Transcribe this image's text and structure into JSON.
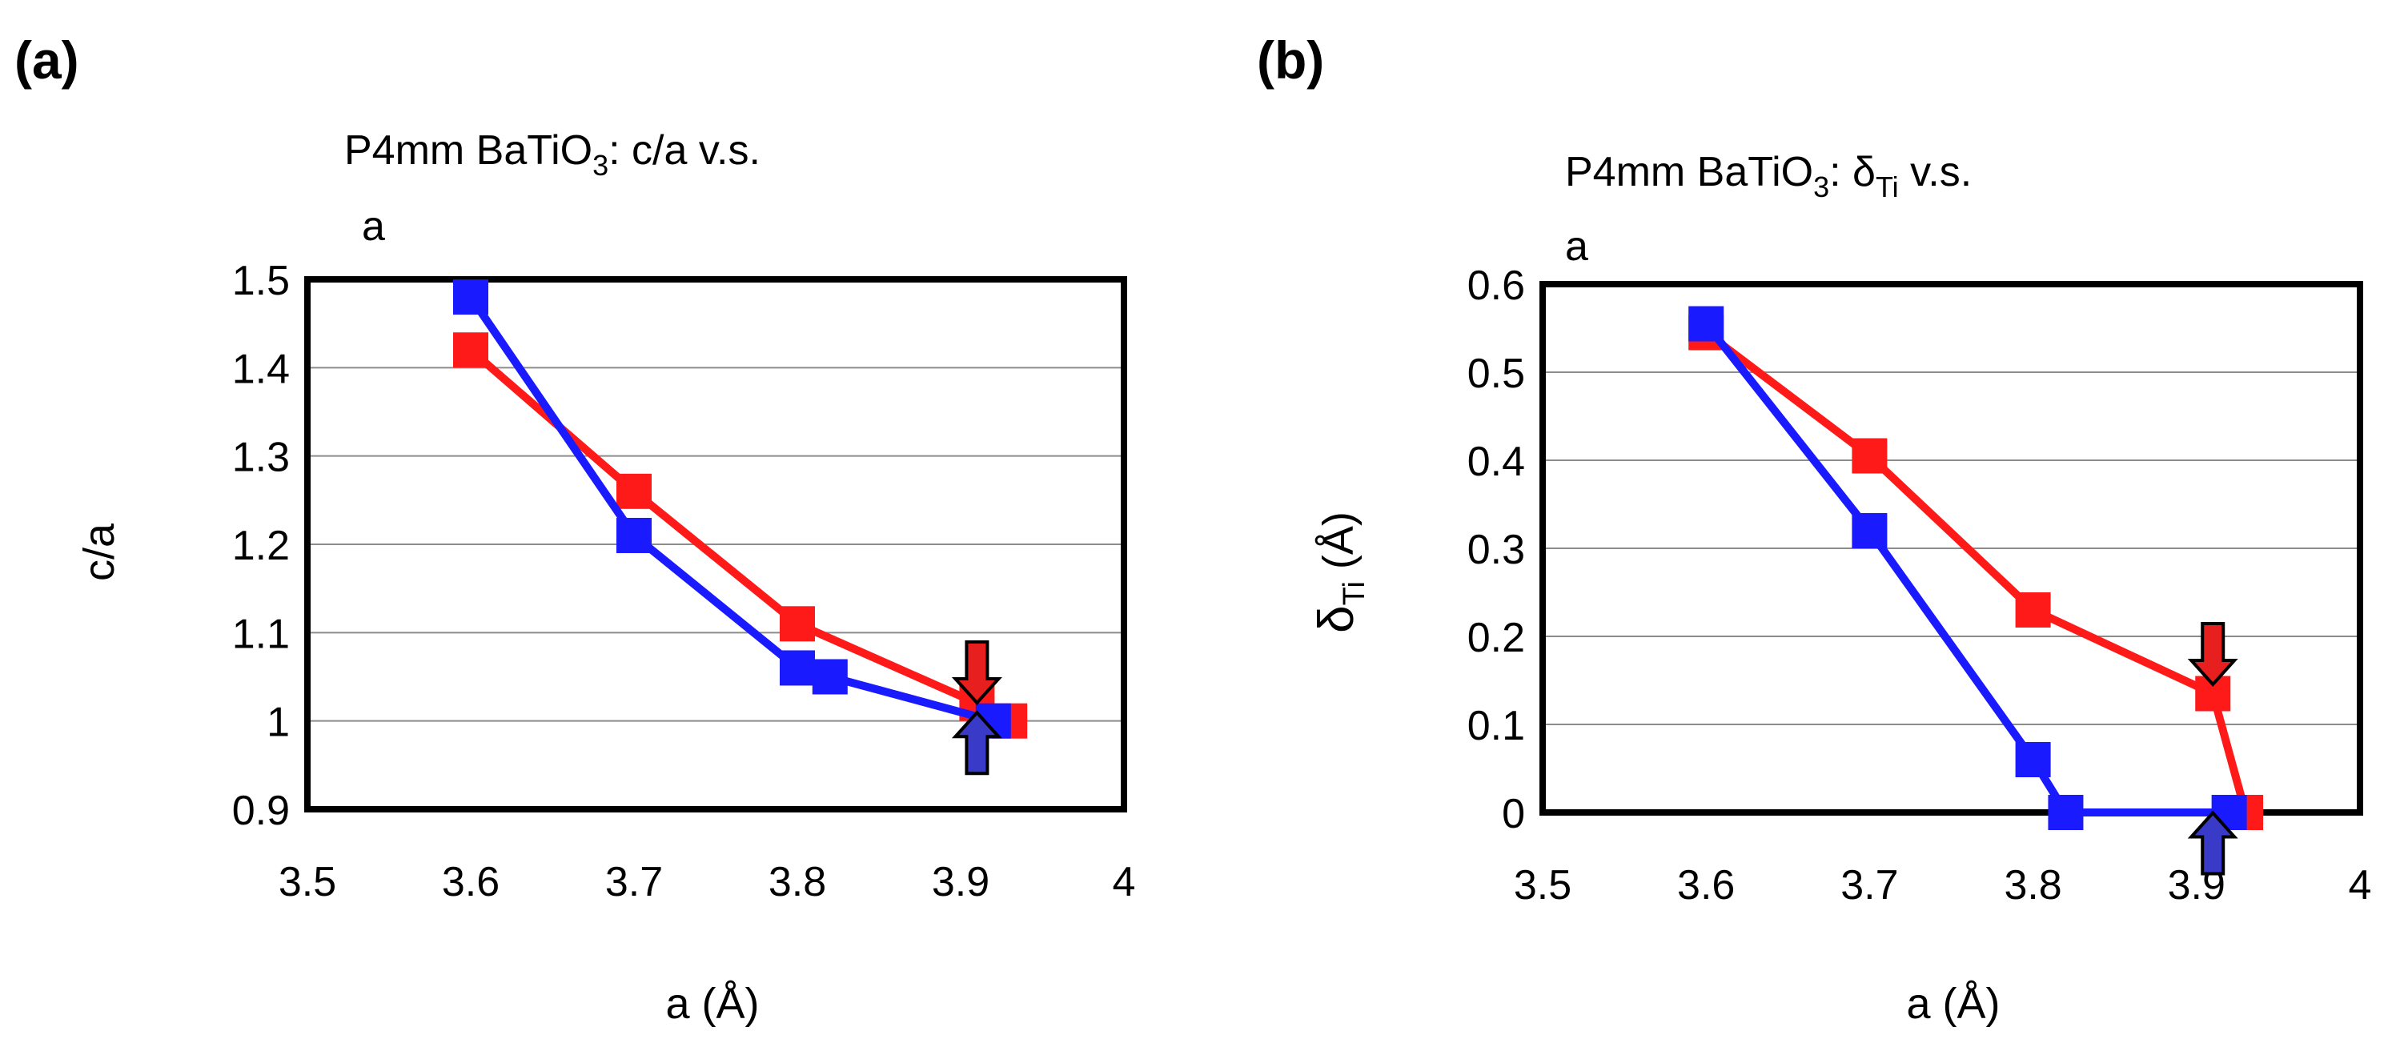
{
  "chart_data": [
    {
      "panel_label": "(a)",
      "type": "line",
      "title_main": "P4mm BaTiO",
      "title_sub": "3",
      "title_rest": ": c/a v.s.",
      "title_line2": "a",
      "xlabel": "a (Å)",
      "ylabel": "c/a",
      "xlim": [
        3.5,
        4.0
      ],
      "ylim": [
        0.9,
        1.5
      ],
      "x_ticks": [
        "3.5",
        "3.6",
        "3.7",
        "3.8",
        "3.9",
        "4"
      ],
      "y_ticks": [
        "0.9",
        "1",
        "1.1",
        "1.2",
        "1.3",
        "1.4",
        "1.5"
      ],
      "x_tick_values": [
        3.5,
        3.6,
        3.7,
        3.8,
        3.9,
        4.0
      ],
      "y_tick_values": [
        0.9,
        1.0,
        1.1,
        1.2,
        1.3,
        1.4,
        1.5
      ],
      "series": [
        {
          "name": "red",
          "color": "#ff1a1a",
          "x": [
            3.6,
            3.7,
            3.8,
            3.91,
            3.93
          ],
          "y": [
            1.42,
            1.26,
            1.11,
            1.02,
            1.0
          ]
        },
        {
          "name": "blue",
          "color": "#1a1aff",
          "x": [
            3.6,
            3.7,
            3.8,
            3.82,
            3.92
          ],
          "y": [
            1.48,
            1.21,
            1.06,
            1.05,
            1.0
          ]
        }
      ],
      "arrows": [
        {
          "name": "red-down-arrow",
          "color": "#e81f1f",
          "direction": "down",
          "x": 3.91,
          "y": 1.055
        },
        {
          "name": "blue-up-arrow",
          "color": "#3a3ac8",
          "direction": "up",
          "x": 3.91,
          "y": 0.975
        }
      ]
    },
    {
      "panel_label": "(b)",
      "type": "line",
      "title_main": "P4mm BaTiO",
      "title_sub": "3",
      "title_rest": ": δ",
      "title_sub2": "Ti",
      "title_rest2": " v.s.",
      "title_line2": "a",
      "xlabel": "a (Å)",
      "ylabel_main": "δ",
      "ylabel_sub": "Ti",
      "ylabel_rest": " (Å)",
      "xlim": [
        3.5,
        4.0
      ],
      "ylim": [
        0.0,
        0.6
      ],
      "x_ticks": [
        "3.5",
        "3.6",
        "3.7",
        "3.8",
        "3.9",
        "4"
      ],
      "y_ticks": [
        "0",
        "0.1",
        "0.2",
        "0.3",
        "0.4",
        "0.5",
        "0.6"
      ],
      "x_tick_values": [
        3.5,
        3.6,
        3.7,
        3.8,
        3.9,
        4.0
      ],
      "y_tick_values": [
        0.0,
        0.1,
        0.2,
        0.3,
        0.4,
        0.5,
        0.6
      ],
      "series": [
        {
          "name": "red",
          "color": "#ff1a1a",
          "x": [
            3.6,
            3.7,
            3.8,
            3.91,
            3.93
          ],
          "y": [
            0.545,
            0.405,
            0.23,
            0.135,
            0.0
          ]
        },
        {
          "name": "blue",
          "color": "#1a1aff",
          "x": [
            3.6,
            3.7,
            3.8,
            3.82,
            3.92
          ],
          "y": [
            0.555,
            0.32,
            0.06,
            0.0,
            0.0
          ]
        }
      ],
      "arrows": [
        {
          "name": "red-down-arrow",
          "color": "#e81f1f",
          "direction": "down",
          "x": 3.91,
          "y": 0.18
        },
        {
          "name": "blue-up-arrow",
          "color": "#3a3ac8",
          "direction": "up",
          "x": 3.91,
          "y": -0.035
        }
      ]
    }
  ]
}
